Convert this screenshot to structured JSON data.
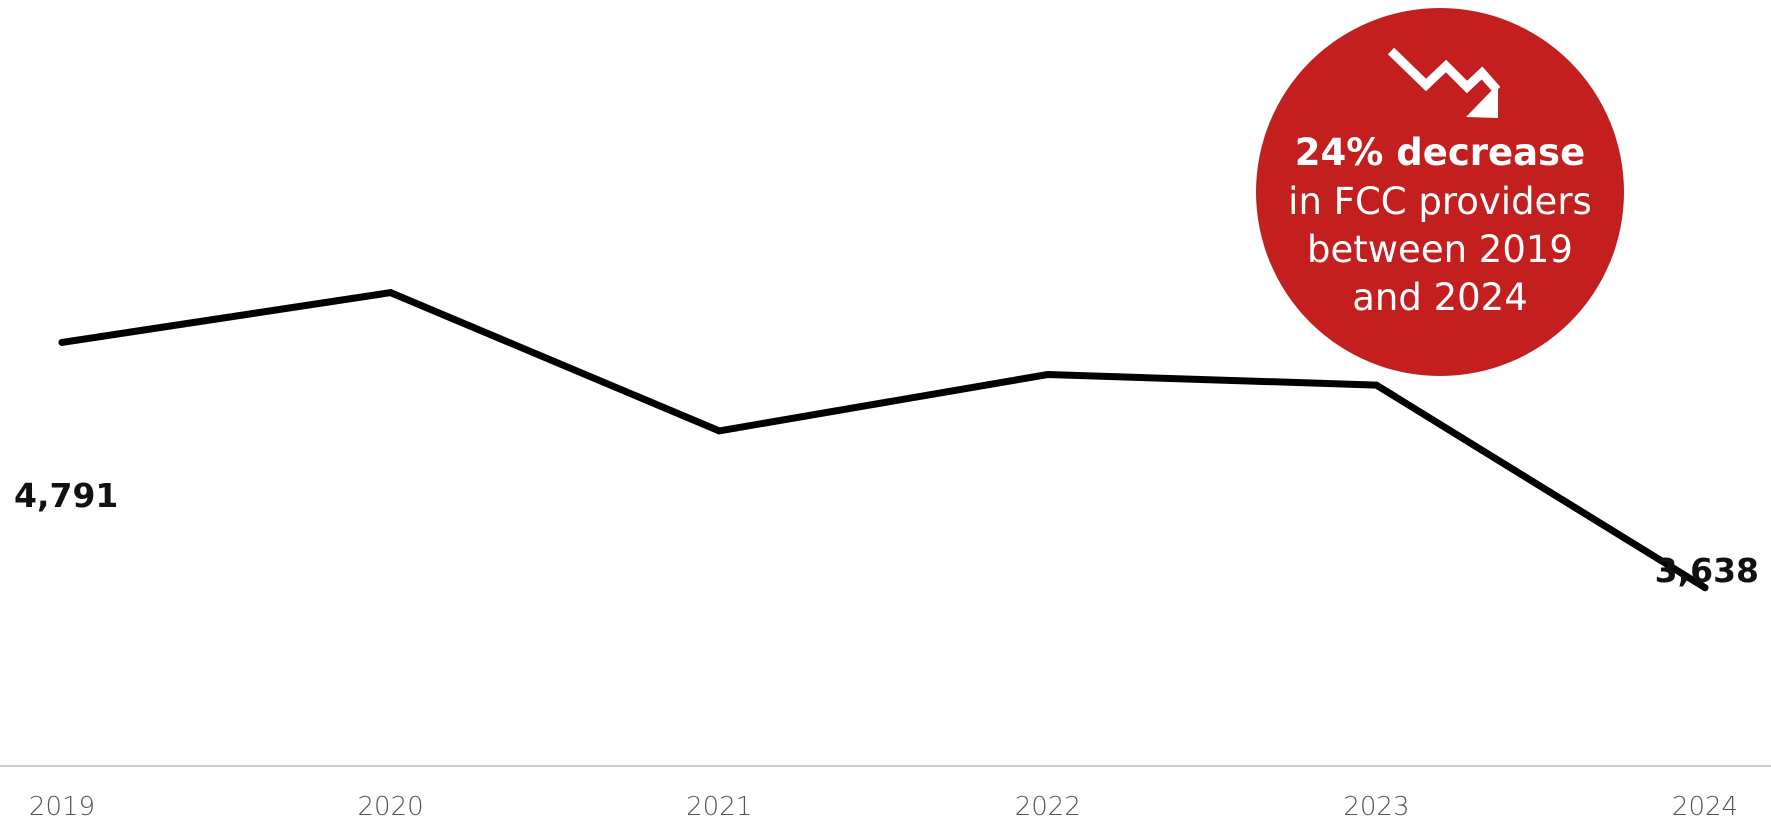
{
  "chart_data": {
    "type": "line",
    "title": "",
    "xlabel": "",
    "ylabel": "",
    "x": [
      "2019",
      "2020",
      "2021",
      "2022",
      "2023",
      "2024"
    ],
    "values": [
      4791,
      5025,
      4375,
      4640,
      4590,
      3638
    ],
    "series": [
      {
        "values": [
          4791,
          5025,
          4375,
          4640,
          4590,
          3638
        ],
        "color": "#000000"
      }
    ],
    "ylim": [
      2800,
      6400
    ],
    "data_labels": [
      {
        "index": 0,
        "text": "4,791",
        "position": "below-left"
      },
      {
        "index": 5,
        "text": "3,638",
        "position": "below-right"
      }
    ],
    "grid": false,
    "legend": "none"
  },
  "callout": {
    "icon": "trending-down-arrow-icon",
    "headline": "24% decrease",
    "lines": [
      "in FCC providers",
      "between 2019",
      "and 2024"
    ],
    "color": "#c31f1f",
    "text_color": "#ffffff"
  },
  "colors": {
    "line": "#000000",
    "axis": "#cccccc",
    "tick_text": "#555555",
    "label_text": "#111111"
  }
}
